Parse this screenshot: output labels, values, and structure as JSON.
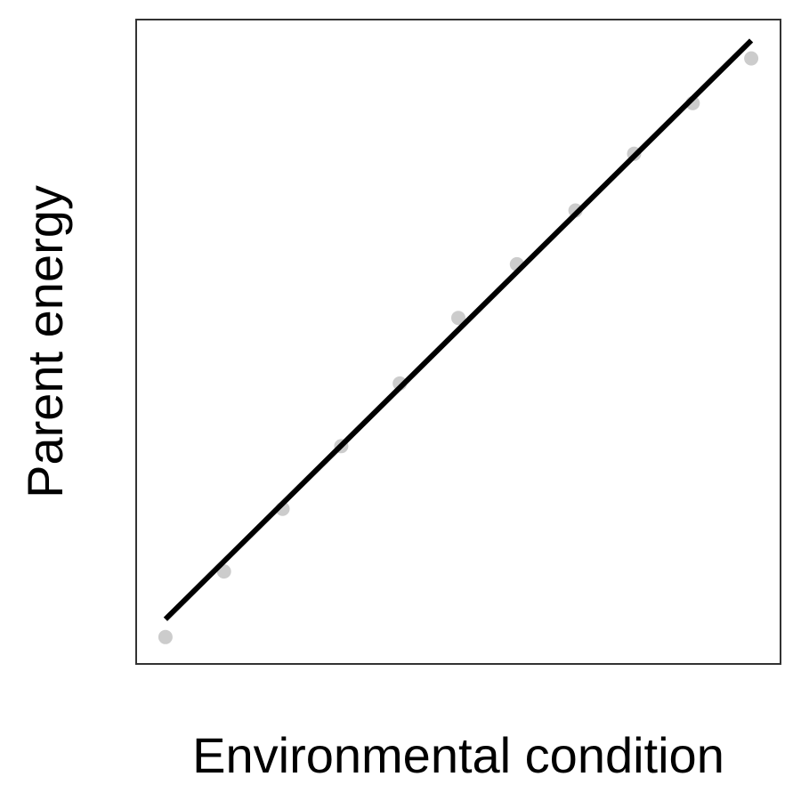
{
  "chart_data": {
    "type": "scatter",
    "title": "",
    "xlabel": "Environmental condition",
    "ylabel": "Parent energy",
    "xlim": [
      0.5,
      11.5
    ],
    "ylim": [
      0.0,
      10.8
    ],
    "ticks_shown": false,
    "grid": false,
    "legend": "none",
    "series": [
      {
        "kind": "points",
        "color": "#cccccc",
        "x": [
          1,
          2,
          3,
          4,
          5,
          6,
          7,
          8,
          9,
          10,
          11
        ],
        "y": [
          0.45,
          1.55,
          2.6,
          3.65,
          4.7,
          5.8,
          6.7,
          7.6,
          8.55,
          9.4,
          10.15
        ]
      },
      {
        "kind": "fit-line",
        "color": "#000000",
        "x": [
          1,
          11
        ],
        "y": [
          0.75,
          10.45
        ]
      }
    ]
  }
}
